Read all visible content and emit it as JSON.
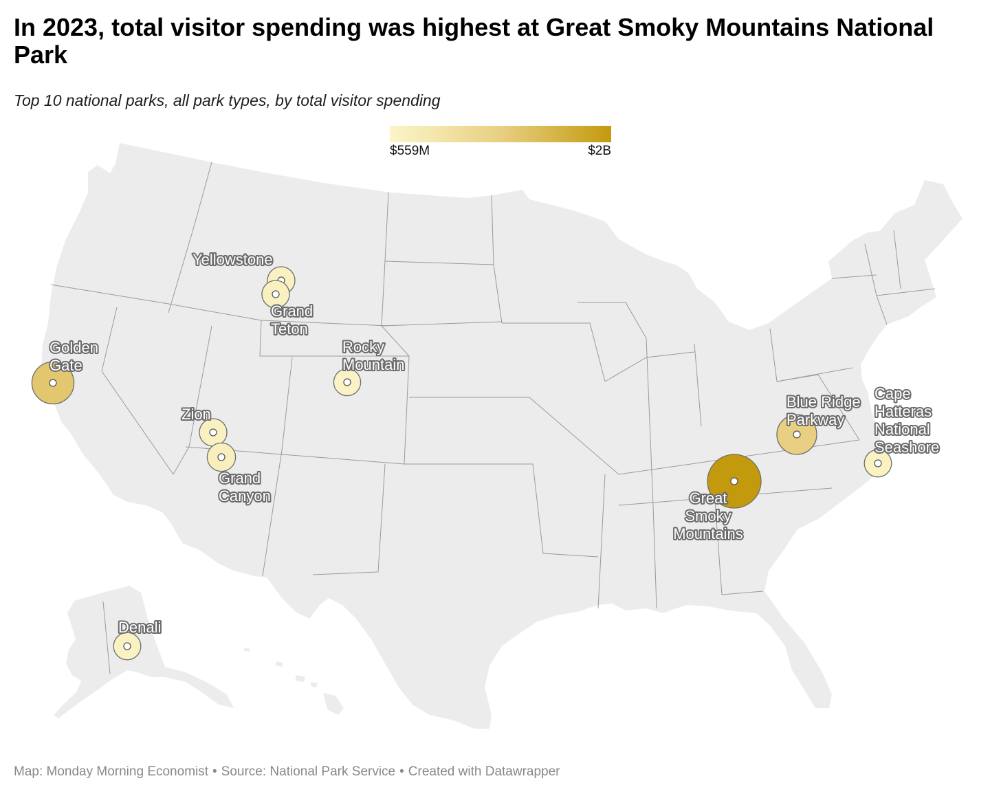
{
  "header": {
    "title": "In 2023, total visitor spending was highest at Great Smoky Mountains National Park",
    "subtitle": "Top 10 national parks, all park types, by total visitor spending"
  },
  "legend": {
    "min_label": "$559M",
    "max_label": "$2B",
    "min_value_musd": 559,
    "max_value_musd": 2000,
    "color_low": "#fcf5c9",
    "color_mid": "#e8cf82",
    "color_high": "#c39a0e"
  },
  "map": {
    "land_color": "#ececec",
    "border_color": "#9a9a9a",
    "marker_outline": "#6e6e6e"
  },
  "parks": [
    {
      "id": "yellowstone",
      "label_lines": [
        "Yellowstone"
      ],
      "level": 0.05
    },
    {
      "id": "grand-teton",
      "label_lines": [
        "Grand",
        "Teton"
      ],
      "level": 0.05
    },
    {
      "id": "golden-gate",
      "label_lines": [
        "Golden",
        "Gate"
      ],
      "level": 0.58
    },
    {
      "id": "rocky-mountain",
      "label_lines": [
        "Rocky",
        "Mountain"
      ],
      "level": 0.03
    },
    {
      "id": "zion",
      "label_lines": [
        "Zion"
      ],
      "level": 0.05
    },
    {
      "id": "grand-canyon",
      "label_lines": [
        "Grand",
        "Canyon"
      ],
      "level": 0.08
    },
    {
      "id": "blue-ridge-parkway",
      "label_lines": [
        "Blue Ridge",
        "Parkway"
      ],
      "level": 0.5
    },
    {
      "id": "cape-hatteras",
      "label_lines": [
        "Cape",
        "Hatteras",
        "National",
        "Seashore"
      ],
      "level": 0.04
    },
    {
      "id": "great-smoky-mountains",
      "label_lines": [
        "Great",
        "Smoky",
        "Mountains"
      ],
      "level": 1.0
    },
    {
      "id": "denali",
      "label_lines": [
        "Denali"
      ],
      "level": 0.04
    }
  ],
  "footer": {
    "credit": "Map: Monday Morning Economist",
    "sep1": "•",
    "source": "Source: National Park Service",
    "sep2": "•",
    "tool": "Created with Datawrapper"
  }
}
